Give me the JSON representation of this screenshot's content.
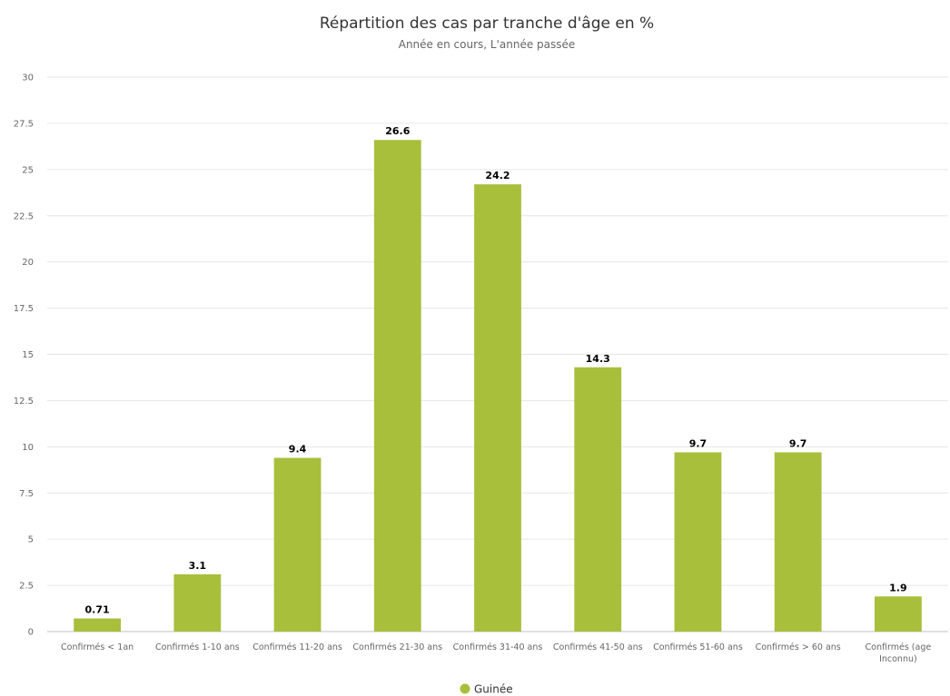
{
  "chart_data": {
    "type": "bar",
    "title": "Répartition des cas par tranche d'âge en %",
    "subtitle": "Année en cours, L'année passée",
    "categories": [
      "Confirmés < 1an",
      "Confirmés 1-10 ans",
      "Confirmés 11-20 ans",
      "Confirmés 21-30 ans",
      "Confirmés 31-40 ans",
      "Confirmés 41-50 ans",
      "Confirmés 51-60 ans",
      "Confirmés > 60 ans",
      "Confirmés (age Inconnu)"
    ],
    "series": [
      {
        "name": "Guinée",
        "color": "#a8bf3b",
        "values": [
          0.71,
          3.1,
          9.4,
          26.6,
          24.2,
          14.3,
          9.7,
          9.7,
          1.9
        ],
        "data_labels": [
          "0.71",
          "3.1",
          "9.4",
          "26.6",
          "24.2",
          "14.3",
          "9.7",
          "9.7",
          "1.9"
        ]
      }
    ],
    "ylim": [
      0,
      30
    ],
    "yticks": [
      "0",
      "2.5",
      "5",
      "7.5",
      "10",
      "12.5",
      "15",
      "17.5",
      "20",
      "22.5",
      "25",
      "27.5",
      "30"
    ],
    "grid": true,
    "legend": "bottom-center",
    "xlabel": "",
    "ylabel": ""
  }
}
